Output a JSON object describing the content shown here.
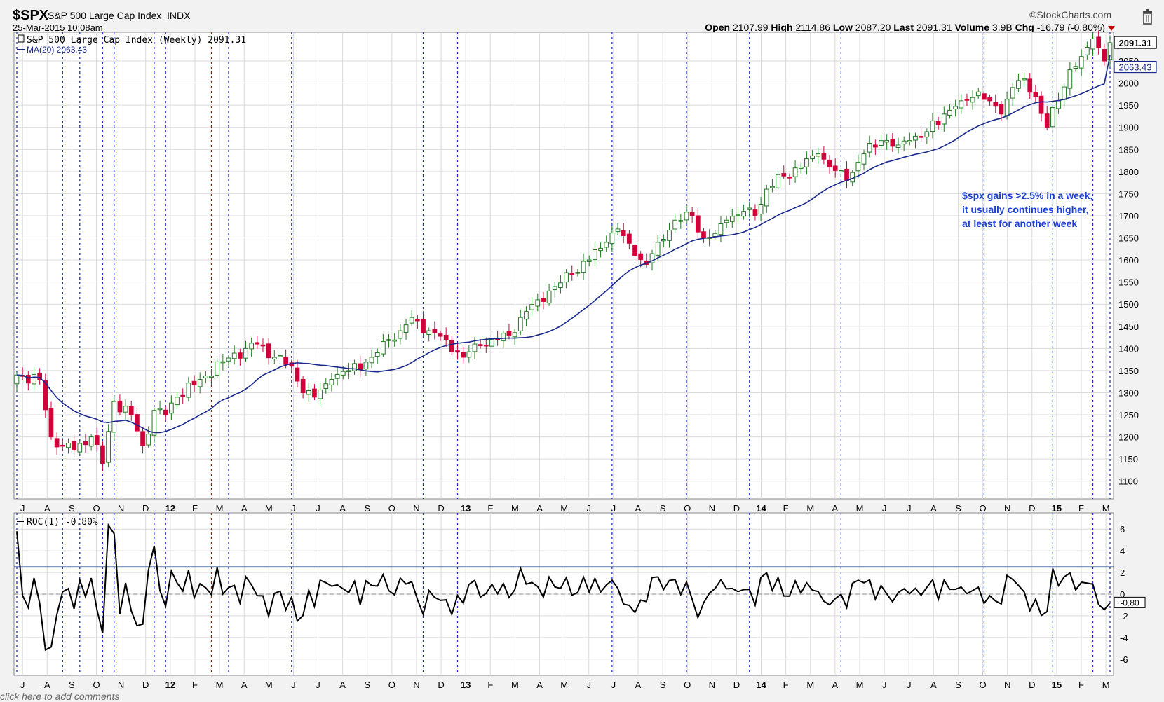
{
  "header": {
    "symbol": "$SPX",
    "name": "S&P 500 Large Cap Index",
    "exchange": "INDX",
    "datetime": "25-Mar-2015 10:08am",
    "brand": "©StockCharts.com",
    "trash_icon": "trash-icon",
    "quote": [
      {
        "label": "Open",
        "value": "2107.99"
      },
      {
        "label": "High",
        "value": "2114.86"
      },
      {
        "label": "Low",
        "value": "2087.20"
      },
      {
        "label": "Last",
        "value": "2091.31"
      },
      {
        "label": "Volume",
        "value": "3.9B"
      },
      {
        "label": "Chg",
        "value": "-16.79 (-0.80%)"
      }
    ],
    "chg_icon": "down-triangle-icon",
    "chg_color": "#cc0000"
  },
  "price_panel": {
    "legend_title": "S&P 500 Large Cap Index (Weekly) 2091.31",
    "legend_ma": "MA(20) 2063.43",
    "last_tag": "2091.31",
    "ma_tag": "2063.43",
    "annotation": [
      "$spx gains >2.5% in a week,",
      "it usually continues higher,",
      "at least for another week"
    ],
    "up_color": "#1e7a1e",
    "down_color": "#d0003a",
    "ma_color": "#1a2a8c",
    "annotation_color": "#1a3fd6"
  },
  "roc_panel": {
    "legend": "ROC(1) -0.80%",
    "last_tag": "-0.80",
    "line_color": "#000000",
    "threshold_color": "#1a2a8c"
  },
  "footer": {
    "comment_link": "click here to add comments"
  },
  "chart_data": [
    {
      "type": "candlestick",
      "title": "S&P 500 Large Cap Index (Weekly) 2091.31",
      "x_tick_labels": [
        "J",
        "A",
        "S",
        "O",
        "N",
        "D",
        "12",
        "F",
        "M",
        "A",
        "M",
        "J",
        "J",
        "A",
        "S",
        "O",
        "N",
        "D",
        "13",
        "F",
        "M",
        "A",
        "M",
        "J",
        "J",
        "A",
        "S",
        "O",
        "N",
        "D",
        "14",
        "F",
        "M",
        "A",
        "M",
        "J",
        "J",
        "A",
        "S",
        "O",
        "N",
        "D",
        "15",
        "F",
        "M"
      ],
      "y_ticks": [
        1100,
        1150,
        1200,
        1250,
        1300,
        1350,
        1400,
        1450,
        1500,
        1550,
        1600,
        1650,
        1700,
        1750,
        1800,
        1850,
        1900,
        1950,
        2000,
        2050
      ],
      "ylim": [
        1060,
        2115
      ],
      "weeks": 192,
      "close_anchors": [
        [
          0,
          1340
        ],
        [
          4,
          1330
        ],
        [
          6,
          1200
        ],
        [
          8,
          1180
        ],
        [
          10,
          1170
        ],
        [
          13,
          1200
        ],
        [
          15,
          1140
        ],
        [
          17,
          1280
        ],
        [
          20,
          1250
        ],
        [
          22,
          1180
        ],
        [
          24,
          1260
        ],
        [
          26,
          1250
        ],
        [
          28,
          1290
        ],
        [
          32,
          1330
        ],
        [
          36,
          1370
        ],
        [
          40,
          1400
        ],
        [
          42,
          1410
        ],
        [
          45,
          1380
        ],
        [
          48,
          1360
        ],
        [
          50,
          1300
        ],
        [
          52,
          1290
        ],
        [
          55,
          1330
        ],
        [
          58,
          1350
        ],
        [
          62,
          1380
        ],
        [
          65,
          1420
        ],
        [
          67,
          1440
        ],
        [
          69,
          1470
        ],
        [
          72,
          1440
        ],
        [
          75,
          1420
        ],
        [
          78,
          1380
        ],
        [
          80,
          1410
        ],
        [
          83,
          1420
        ],
        [
          86,
          1430
        ],
        [
          88,
          1470
        ],
        [
          91,
          1510
        ],
        [
          94,
          1540
        ],
        [
          97,
          1570
        ],
        [
          100,
          1600
        ],
        [
          103,
          1640
        ],
        [
          105,
          1670
        ],
        [
          108,
          1610
        ],
        [
          110,
          1590
        ],
        [
          112,
          1640
        ],
        [
          115,
          1690
        ],
        [
          118,
          1700
        ],
        [
          120,
          1650
        ],
        [
          122,
          1660
        ],
        [
          124,
          1690
        ],
        [
          127,
          1710
        ],
        [
          129,
          1700
        ],
        [
          131,
          1760
        ],
        [
          134,
          1790
        ],
        [
          137,
          1810
        ],
        [
          140,
          1840
        ],
        [
          142,
          1810
        ],
        [
          145,
          1780
        ],
        [
          148,
          1840
        ],
        [
          151,
          1870
        ],
        [
          154,
          1860
        ],
        [
          156,
          1870
        ],
        [
          159,
          1890
        ],
        [
          162,
          1930
        ],
        [
          165,
          1960
        ],
        [
          168,
          1980
        ],
        [
          170,
          1960
        ],
        [
          172,
          1930
        ],
        [
          174,
          1990
        ],
        [
          176,
          2010
        ],
        [
          178,
          1970
        ],
        [
          180,
          1900
        ],
        [
          182,
          1960
        ],
        [
          184,
          2030
        ],
        [
          186,
          2060
        ],
        [
          188,
          2100
        ],
        [
          189,
          2080
        ],
        [
          190,
          2050
        ],
        [
          191,
          2091
        ]
      ],
      "ma_length": 20,
      "ma_last": 2063.43,
      "last": 2091.31,
      "annotation": "$spx gains >2.5% in a week, it usually continues higher, at least for another week",
      "signal_week_indices": [
        0,
        8,
        11,
        15,
        17,
        24,
        26,
        37,
        48,
        71,
        77,
        104,
        117,
        128,
        144,
        169,
        181,
        188,
        191
      ]
    },
    {
      "type": "line",
      "title": "ROC(1) -0.80%",
      "y_ticks": [
        6,
        4,
        2,
        0,
        -2,
        -4,
        -6
      ],
      "ylim": [
        -7.5,
        7.5
      ],
      "threshold": 2.5,
      "last": -0.8,
      "derived_from": "weekly close percent change"
    }
  ]
}
